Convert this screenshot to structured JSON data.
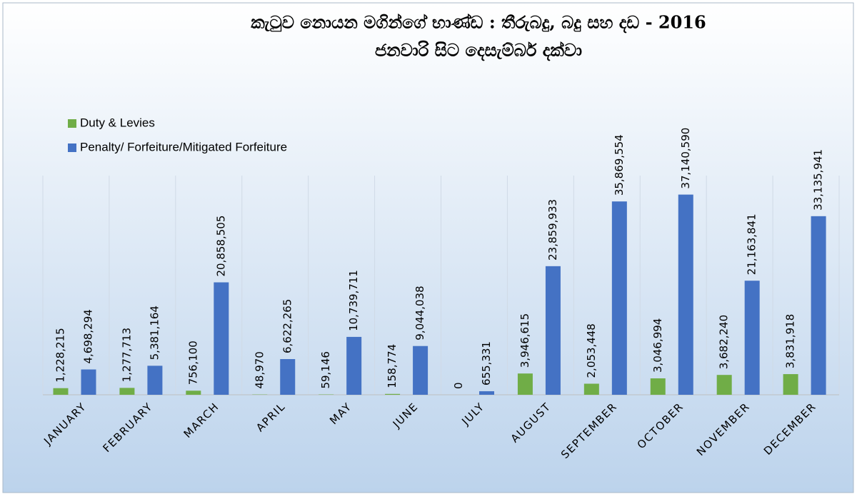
{
  "chart_data": {
    "type": "bar",
    "title": "කැටුව නොයන මගින්ගේ භාණ්ඩ : තීරුබදු, බදු සහ දඩ - 2016",
    "subtitle": "ජනවාරි සිට දෙසැම්බර් දක්වා",
    "categories": [
      "JANUARY",
      "FEBRUARY",
      "MARCH",
      "APRIL",
      "MAY",
      "JUNE",
      "JULY",
      "AUGUST",
      "SEPTEMBER",
      "OCTOBER",
      "NOVEMBER",
      "DECEMBER"
    ],
    "series": [
      {
        "name": "Duty & Levies",
        "color": "#70ad47",
        "values": [
          1228215,
          1277713,
          756100,
          48970,
          59146,
          158774,
          0,
          3946615,
          2053448,
          3046994,
          3682240,
          3831918
        ],
        "value_labels": [
          "1,228,215",
          "1,277,713",
          "756,100",
          "48,970",
          "59,146",
          "158,774",
          "0",
          "3,946,615",
          "2,053,448",
          "3,046,994",
          "3,682,240",
          "3,831,918"
        ]
      },
      {
        "name": "Penalty/ Forfeiture/Mitigated Forfeiture",
        "color": "#4472c4",
        "values": [
          4698294,
          5381164,
          20858505,
          6622265,
          10739711,
          9044038,
          655331,
          23859933,
          35869554,
          37140590,
          21163841,
          33135941
        ],
        "value_labels": [
          "4,698,294",
          "5,381,164",
          "20,858,505",
          "6,622,265",
          "10,739,711",
          "9,044,038",
          "655,331",
          "23,859,933",
          "35,869,554",
          "37,140,590",
          "21,163,841",
          "33,135,941"
        ]
      }
    ],
    "ylim": [
      0,
      40000000
    ],
    "legend": "top-left"
  }
}
